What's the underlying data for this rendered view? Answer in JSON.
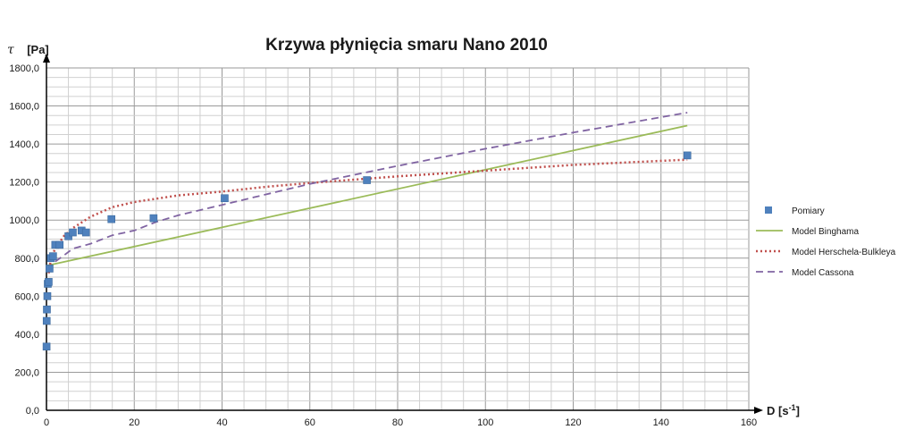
{
  "chart_data": {
    "type": "scatter",
    "title": "Krzywa płynięcia smaru Nano 2010",
    "ylabel_symbol": "τ",
    "ylabel_unit": "[Pa]",
    "xlabel_base": "D [s",
    "xlabel_sup": "-1",
    "xlabel_close": "]",
    "xlim": [
      0,
      160
    ],
    "ylim": [
      0,
      1800
    ],
    "x_ticks": [
      0,
      20,
      40,
      60,
      80,
      100,
      120,
      140,
      160
    ],
    "x_tick_labels": [
      "0",
      "20",
      "40",
      "60",
      "80",
      "100",
      "120",
      "140",
      "160"
    ],
    "y_ticks": [
      0,
      200,
      400,
      600,
      800,
      1000,
      1200,
      1400,
      1600,
      1800
    ],
    "y_tick_labels": [
      "0,0",
      "200,0",
      "400,0",
      "600,0",
      "800,0",
      "1000,0",
      "1200,0",
      "1400,0",
      "1600,0",
      "1800,0"
    ],
    "grid": true,
    "legend_position": "right",
    "series": [
      {
        "name": "Pomiary",
        "kind": "points",
        "color": "#4f81bd",
        "x": [
          0.02,
          0.05,
          0.1,
          0.2,
          0.3,
          0.5,
          0.7,
          1.0,
          1.5,
          2.0,
          3.0,
          5.0,
          6.0,
          8.0,
          9.0,
          14.8,
          24.4,
          40.6,
          73.0,
          146.0
        ],
        "y": [
          335,
          470,
          530,
          600,
          665,
          675,
          745,
          800,
          810,
          870,
          870,
          915,
          935,
          945,
          935,
          1005,
          1010,
          1115,
          1210,
          1340
        ]
      },
      {
        "name": "Model Binghama",
        "kind": "line",
        "color": "#9bbb59",
        "dash": "",
        "x": [
          0,
          146
        ],
        "y": [
          760,
          1497
        ]
      },
      {
        "name": "Model Herschela-Bulkleya",
        "kind": "line",
        "color": "#c0504d",
        "dash": "2,3",
        "x": [
          0.5,
          1,
          2,
          4,
          6,
          10,
          15,
          20,
          30,
          40,
          50,
          60,
          80,
          100,
          120,
          146
        ],
        "y": [
          720,
          792,
          852,
          917,
          958,
          1017,
          1068,
          1095,
          1130,
          1150,
          1175,
          1195,
          1230,
          1260,
          1290,
          1318
        ]
      },
      {
        "name": "Model Cassona",
        "kind": "line",
        "color": "#8064a2",
        "dash": "8,5",
        "x": [
          0.3,
          1,
          2,
          4,
          6,
          10,
          15,
          20,
          25,
          30,
          40,
          50,
          60,
          80,
          100,
          120,
          146
        ],
        "y": [
          735,
          758,
          782,
          815,
          850,
          875,
          920,
          945,
          990,
          1025,
          1080,
          1135,
          1190,
          1285,
          1375,
          1460,
          1565
        ]
      }
    ]
  }
}
